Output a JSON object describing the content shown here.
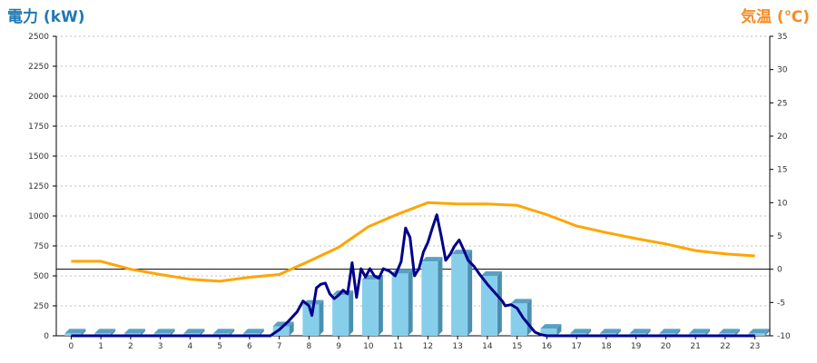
{
  "chart_data": {
    "type": "bar",
    "title": "",
    "y_left_label": "電力 (kW)",
    "y_right_label": "気温 (℃)",
    "x": [
      0,
      1,
      2,
      3,
      4,
      5,
      6,
      7,
      8,
      9,
      10,
      11,
      12,
      13,
      14,
      15,
      16,
      17,
      18,
      19,
      20,
      21,
      22,
      23
    ],
    "y_left_ticks": [
      0,
      250,
      500,
      750,
      1000,
      1250,
      1500,
      1750,
      2000,
      2250,
      2500
    ],
    "y_right_ticks": [
      -10,
      -5,
      0,
      5,
      10,
      15,
      20,
      25,
      30,
      35
    ],
    "ylim_left": [
      0,
      2500
    ],
    "ylim_right": [
      -10,
      35
    ],
    "grid": true,
    "series": [
      {
        "name": "",
        "type": "bar",
        "axis": "left",
        "color": "#87ceeb",
        "values": [
          20,
          20,
          20,
          20,
          20,
          20,
          20,
          80,
          260,
          340,
          470,
          520,
          620,
          680,
          500,
          270,
          60,
          20,
          20,
          20,
          20,
          20,
          20,
          20
        ]
      },
      {
        "name": "",
        "type": "line",
        "axis": "left",
        "color": "#00008b",
        "points": [
          [
            0,
            0
          ],
          [
            1,
            0
          ],
          [
            2,
            0
          ],
          [
            3,
            0
          ],
          [
            4,
            0
          ],
          [
            5,
            0
          ],
          [
            6,
            0
          ],
          [
            6.7,
            0
          ],
          [
            7,
            50
          ],
          [
            7.3,
            120
          ],
          [
            7.6,
            200
          ],
          [
            7.8,
            290
          ],
          [
            8,
            250
          ],
          [
            8.1,
            170
          ],
          [
            8.25,
            400
          ],
          [
            8.4,
            430
          ],
          [
            8.55,
            440
          ],
          [
            8.7,
            350
          ],
          [
            8.85,
            310
          ],
          [
            9,
            340
          ],
          [
            9.15,
            380
          ],
          [
            9.3,
            350
          ],
          [
            9.45,
            610
          ],
          [
            9.6,
            320
          ],
          [
            9.75,
            560
          ],
          [
            9.9,
            490
          ],
          [
            10.05,
            560
          ],
          [
            10.2,
            500
          ],
          [
            10.35,
            480
          ],
          [
            10.5,
            560
          ],
          [
            10.7,
            540
          ],
          [
            10.9,
            500
          ],
          [
            11.1,
            620
          ],
          [
            11.25,
            900
          ],
          [
            11.4,
            820
          ],
          [
            11.55,
            500
          ],
          [
            11.7,
            560
          ],
          [
            11.85,
            700
          ],
          [
            12,
            780
          ],
          [
            12.15,
            900
          ],
          [
            12.3,
            1010
          ],
          [
            12.45,
            830
          ],
          [
            12.6,
            630
          ],
          [
            12.75,
            680
          ],
          [
            12.9,
            750
          ],
          [
            13.05,
            800
          ],
          [
            13.2,
            720
          ],
          [
            13.35,
            630
          ],
          [
            13.55,
            580
          ],
          [
            13.75,
            510
          ],
          [
            14,
            430
          ],
          [
            14.25,
            360
          ],
          [
            14.5,
            290
          ],
          [
            14.6,
            250
          ],
          [
            14.8,
            260
          ],
          [
            15,
            230
          ],
          [
            15.2,
            150
          ],
          [
            15.4,
            90
          ],
          [
            15.6,
            30
          ],
          [
            15.8,
            10
          ],
          [
            16,
            0
          ],
          [
            17,
            0
          ],
          [
            18,
            0
          ],
          [
            19,
            0
          ],
          [
            20,
            0
          ],
          [
            21,
            0
          ],
          [
            22,
            0
          ],
          [
            23,
            0
          ]
        ]
      },
      {
        "name": "",
        "type": "line",
        "axis": "right",
        "color": "#ffa500",
        "x": [
          0,
          1,
          2,
          3,
          4,
          5,
          6,
          7,
          8,
          9,
          10,
          11,
          12,
          13,
          14,
          15,
          16,
          17,
          18,
          19,
          20,
          21,
          22,
          23
        ],
        "values": [
          1.2,
          1.2,
          0,
          -0.8,
          -1.5,
          -1.8,
          -1.2,
          -0.8,
          1.2,
          3.3,
          6.4,
          8.3,
          10,
          9.8,
          9.8,
          9.6,
          8.2,
          6.5,
          5.5,
          4.6,
          3.8,
          2.8,
          2.3,
          2
        ]
      }
    ]
  }
}
